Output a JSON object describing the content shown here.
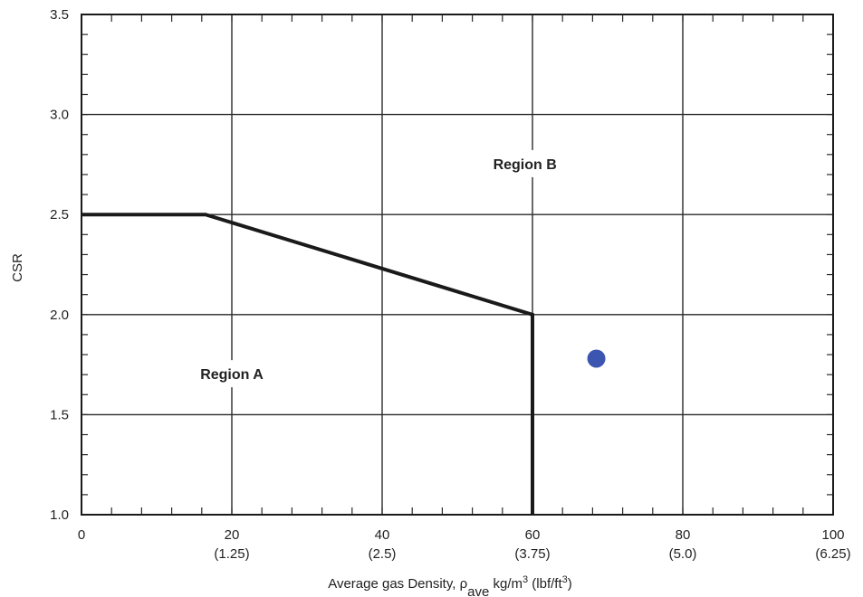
{
  "chart_data": {
    "type": "line",
    "xlabel": {
      "main": "Average gas Density, ",
      "rho": "ρ",
      "sub": "ave",
      "unit1": " kg/m",
      "sup1": "3",
      "unit2": " (lbf/ft",
      "sup2": "3",
      "close": ")"
    },
    "ylabel": "CSR",
    "xlim": [
      0,
      100
    ],
    "ylim": [
      1.0,
      3.5
    ],
    "x_ticks": [
      {
        "value": 0,
        "label": "0",
        "sublabel": ""
      },
      {
        "value": 20,
        "label": "20",
        "sublabel": "(1.25)"
      },
      {
        "value": 40,
        "label": "40",
        "sublabel": "(2.5)"
      },
      {
        "value": 60,
        "label": "60",
        "sublabel": "(3.75)"
      },
      {
        "value": 80,
        "label": "80",
        "sublabel": "(5.0)"
      },
      {
        "value": 100,
        "label": "100",
        "sublabel": "(6.25)"
      }
    ],
    "y_ticks": [
      {
        "value": 1.0,
        "label": "1.0"
      },
      {
        "value": 1.5,
        "label": "1.5"
      },
      {
        "value": 2.0,
        "label": "2.0"
      },
      {
        "value": 2.5,
        "label": "2.5"
      },
      {
        "value": 3.0,
        "label": "3.0"
      },
      {
        "value": 3.5,
        "label": "3.5"
      }
    ],
    "x_minor_step": 4,
    "y_minor_step": 0.1,
    "grid": true,
    "boundary": {
      "x": [
        0,
        16.5,
        60,
        60
      ],
      "y": [
        2.5,
        2.5,
        2.0,
        1.0
      ],
      "color": "#1a1a1a"
    },
    "regions": [
      {
        "label": "Region A",
        "x": 20,
        "y": 1.7
      },
      {
        "label": "Region B",
        "x": 59,
        "y": 2.75
      }
    ],
    "points": [
      {
        "x": 68.5,
        "y": 1.78,
        "color": "#3b55b0"
      }
    ]
  }
}
